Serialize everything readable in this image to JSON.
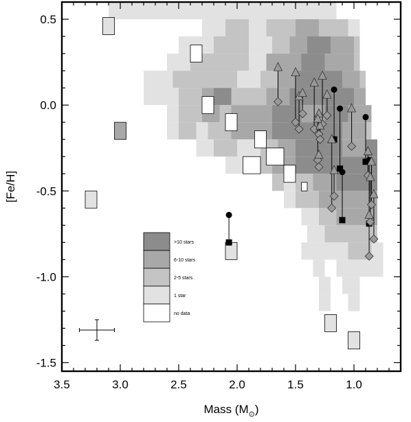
{
  "chart_data": {
    "type": "heatmap",
    "title": "",
    "xlabel": "Mass (M",
    "xlabel_subscript": "⊙",
    "xlabel_close": ")",
    "ylabel": "[Fe/H]",
    "xlim": [
      3.5,
      0.6
    ],
    "ylim": [
      -1.55,
      0.6
    ],
    "x_ticks": [
      3.5,
      3.0,
      2.5,
      2.0,
      1.5,
      1.0
    ],
    "x_tick_labels": [
      "3.5",
      "3.0",
      "2.5",
      "2.0",
      "1.5",
      "1.0"
    ],
    "y_ticks": [
      0.5,
      0.0,
      -0.5,
      -1.0,
      -1.5
    ],
    "y_tick_labels": [
      "0.5",
      "0.0",
      "-0.5",
      "-1.0",
      "-1.5"
    ],
    "cell_size": {
      "mass": 0.1,
      "feh": 0.1
    },
    "colors": {
      "level_4": "#8c8c8c",
      "level_3": "#a8a8a8",
      "level_2": "#c4c4c4",
      "level_1": "#e2e2e2",
      "level_0": "#ffffff"
    },
    "legend": {
      "placement": "lower-left",
      "entries": [
        {
          "label": ">10 stars",
          "level": 4
        },
        {
          "label": "6-10 stars",
          "level": 3
        },
        {
          "label": "2-5 stars",
          "level": 2
        },
        {
          "label": "1 star",
          "level": 1
        },
        {
          "label": "no data",
          "level": 0
        }
      ]
    },
    "density_rows": [
      {
        "feh": 0.55,
        "cells": [
          [
            3.1,
            1.15,
            1
          ]
        ]
      },
      {
        "feh": 0.45,
        "cells": [
          [
            2.3,
            2.1,
            1
          ],
          [
            2.1,
            1.9,
            2
          ],
          [
            1.9,
            1.75,
            1
          ],
          [
            1.75,
            1.5,
            2
          ],
          [
            1.5,
            1.3,
            3
          ],
          [
            1.3,
            1.05,
            2
          ],
          [
            1.05,
            0.95,
            1
          ]
        ]
      },
      {
        "feh": 0.35,
        "cells": [
          [
            2.5,
            2.2,
            1
          ],
          [
            2.2,
            1.9,
            2
          ],
          [
            1.9,
            1.7,
            1
          ],
          [
            1.7,
            1.55,
            2
          ],
          [
            1.55,
            1.4,
            3
          ],
          [
            1.4,
            1.2,
            4
          ],
          [
            1.2,
            1.0,
            3
          ],
          [
            1.0,
            0.95,
            2
          ]
        ]
      },
      {
        "feh": 0.25,
        "cells": [
          [
            2.6,
            2.4,
            1
          ],
          [
            2.4,
            2.1,
            2
          ],
          [
            2.1,
            1.9,
            2
          ],
          [
            1.9,
            1.75,
            1
          ],
          [
            1.75,
            1.6,
            3
          ],
          [
            1.6,
            1.45,
            3
          ],
          [
            1.45,
            1.25,
            4
          ],
          [
            1.25,
            1.1,
            3
          ],
          [
            1.1,
            1.0,
            3
          ],
          [
            1.0,
            0.95,
            2
          ]
        ]
      },
      {
        "feh": 0.15,
        "cells": [
          [
            2.8,
            2.55,
            1
          ],
          [
            2.55,
            2.2,
            2
          ],
          [
            2.2,
            2.0,
            2
          ],
          [
            2.0,
            1.8,
            1
          ],
          [
            1.8,
            1.65,
            2
          ],
          [
            1.65,
            1.5,
            3
          ],
          [
            1.5,
            1.1,
            4
          ],
          [
            1.1,
            0.95,
            3
          ],
          [
            0.95,
            0.9,
            2
          ]
        ]
      },
      {
        "feh": 0.05,
        "cells": [
          [
            2.8,
            2.5,
            1
          ],
          [
            2.5,
            2.3,
            2
          ],
          [
            2.3,
            2.2,
            3
          ],
          [
            2.2,
            2.05,
            4
          ],
          [
            2.05,
            1.9,
            2
          ],
          [
            1.9,
            1.75,
            2
          ],
          [
            1.75,
            1.55,
            3
          ],
          [
            1.55,
            1.0,
            4
          ],
          [
            1.0,
            0.9,
            3
          ]
        ]
      },
      {
        "feh": -0.05,
        "cells": [
          [
            2.6,
            2.5,
            1
          ],
          [
            2.5,
            2.3,
            2
          ],
          [
            2.3,
            2.15,
            3
          ],
          [
            2.15,
            2.05,
            2
          ],
          [
            2.05,
            1.9,
            3
          ],
          [
            1.9,
            1.7,
            3
          ],
          [
            1.7,
            1.45,
            4
          ],
          [
            1.45,
            1.25,
            3
          ],
          [
            1.25,
            1.05,
            4
          ],
          [
            1.05,
            0.85,
            3
          ]
        ]
      },
      {
        "feh": -0.15,
        "cells": [
          [
            2.6,
            2.5,
            1
          ],
          [
            2.5,
            2.35,
            2
          ],
          [
            2.35,
            2.25,
            1
          ],
          [
            2.25,
            2.05,
            2
          ],
          [
            2.05,
            1.85,
            3
          ],
          [
            1.85,
            1.7,
            3
          ],
          [
            1.7,
            1.5,
            4
          ],
          [
            1.5,
            1.3,
            4
          ],
          [
            1.3,
            1.1,
            4
          ],
          [
            1.1,
            0.9,
            3
          ],
          [
            0.9,
            0.85,
            2
          ]
        ]
      },
      {
        "feh": -0.25,
        "cells": [
          [
            2.35,
            2.2,
            1
          ],
          [
            2.2,
            2.0,
            2
          ],
          [
            2.0,
            1.8,
            1
          ],
          [
            1.8,
            1.65,
            2
          ],
          [
            1.65,
            1.5,
            3
          ],
          [
            1.5,
            1.1,
            4
          ],
          [
            1.1,
            0.9,
            3
          ],
          [
            0.9,
            0.8,
            4
          ]
        ]
      },
      {
        "feh": -0.35,
        "cells": [
          [
            2.1,
            1.95,
            1
          ],
          [
            1.95,
            1.7,
            2
          ],
          [
            1.7,
            1.5,
            3
          ],
          [
            1.5,
            1.3,
            4
          ],
          [
            1.3,
            1.1,
            4
          ],
          [
            1.1,
            0.9,
            4
          ],
          [
            0.9,
            0.8,
            4
          ]
        ]
      },
      {
        "feh": -0.45,
        "cells": [
          [
            1.7,
            1.6,
            2
          ],
          [
            1.6,
            1.5,
            1
          ],
          [
            1.5,
            1.35,
            2
          ],
          [
            1.35,
            1.15,
            3
          ],
          [
            1.15,
            0.95,
            4
          ],
          [
            0.95,
            0.8,
            4
          ]
        ]
      },
      {
        "feh": -0.55,
        "cells": [
          [
            1.6,
            1.5,
            1
          ],
          [
            1.5,
            1.3,
            2
          ],
          [
            1.3,
            1.1,
            3
          ],
          [
            1.1,
            0.95,
            3
          ],
          [
            0.95,
            0.8,
            3
          ]
        ]
      },
      {
        "feh": -0.65,
        "cells": [
          [
            1.45,
            1.3,
            1
          ],
          [
            1.3,
            1.15,
            2
          ],
          [
            1.15,
            1.0,
            3
          ],
          [
            1.0,
            0.8,
            3
          ]
        ]
      },
      {
        "feh": -0.75,
        "cells": [
          [
            1.4,
            1.25,
            1
          ],
          [
            1.25,
            1.1,
            2
          ],
          [
            1.1,
            0.95,
            2
          ],
          [
            0.95,
            0.8,
            2
          ]
        ]
      },
      {
        "feh": -0.85,
        "cells": [
          [
            1.45,
            1.3,
            1
          ],
          [
            1.3,
            1.15,
            1
          ],
          [
            1.15,
            1.05,
            1
          ],
          [
            1.05,
            0.95,
            2
          ],
          [
            0.95,
            0.85,
            2
          ],
          [
            0.85,
            0.75,
            1
          ]
        ]
      },
      {
        "feh": -0.95,
        "cells": [
          [
            1.35,
            1.25,
            1
          ],
          [
            1.15,
            1.05,
            1
          ],
          [
            1.05,
            0.75,
            1
          ]
        ]
      },
      {
        "feh": -1.05,
        "cells": [
          [
            1.3,
            1.2,
            1
          ],
          [
            1.1,
            0.95,
            1
          ]
        ]
      },
      {
        "feh": -1.15,
        "cells": [
          [
            1.3,
            1.2,
            1
          ],
          [
            1.05,
            0.95,
            1
          ]
        ]
      }
    ],
    "white_patches": [
      [
        2.4,
        2.3,
        0.35,
        0.25
      ],
      [
        2.3,
        2.2,
        0.05,
        -0.05
      ],
      [
        2.1,
        2.0,
        -0.05,
        -0.15
      ],
      [
        1.85,
        1.75,
        -0.15,
        -0.25
      ],
      [
        1.75,
        1.6,
        -0.25,
        -0.35
      ],
      [
        1.6,
        1.5,
        -0.35,
        -0.45
      ],
      [
        1.95,
        1.8,
        -0.3,
        -0.4
      ],
      [
        1.45,
        1.4,
        -0.45,
        -0.5
      ]
    ],
    "isolated_cells": [
      {
        "mass": [
          3.15,
          3.05
        ],
        "feh": [
          0.51,
          0.41
        ],
        "level": 1
      },
      {
        "mass": [
          3.05,
          2.95
        ],
        "feh": [
          -0.1,
          -0.2
        ],
        "level": 3
      },
      {
        "mass": [
          3.3,
          3.2
        ],
        "feh": [
          -0.5,
          -0.6
        ],
        "level": 1
      },
      {
        "mass": [
          2.1,
          2.0
        ],
        "feh": [
          -0.8,
          -0.9
        ],
        "level": 1
      },
      {
        "mass": [
          1.25,
          1.15
        ],
        "feh": [
          -1.22,
          -1.32
        ],
        "level": 1
      },
      {
        "mass": [
          1.05,
          0.95
        ],
        "feh": [
          -1.32,
          -1.42
        ],
        "level": 1
      }
    ],
    "vectors": [
      {
        "mass": 2.07,
        "start_feh": -0.8,
        "end_feh": -0.64,
        "start_marker": "square",
        "end_marker": "circle"
      },
      {
        "mass": 1.17,
        "start_feh": -0.2,
        "end_feh": 0.09,
        "start_marker": "square",
        "end_marker": "circle"
      },
      {
        "mass": 1.12,
        "start_feh": -0.37,
        "end_feh": -0.02,
        "start_marker": "square",
        "end_marker": "circle"
      },
      {
        "mass": 1.1,
        "start_feh": -0.67,
        "end_feh": -0.39,
        "start_marker": "square",
        "end_marker": "circle"
      },
      {
        "mass": 0.9,
        "start_feh": -0.33,
        "end_feh": -0.07,
        "start_marker": "square",
        "end_marker": "circle"
      },
      {
        "mass": 0.87,
        "start_feh": -0.69,
        "end_feh": -0.32,
        "start_marker": "square",
        "end_marker": "circle"
      },
      {
        "mass": 1.65,
        "start_feh": 0.02,
        "end_feh": 0.22,
        "start_marker": "diamond",
        "end_marker": "triangle"
      },
      {
        "mass": 1.5,
        "start_feh": -0.1,
        "end_feh": 0.19,
        "start_marker": "diamond",
        "end_marker": "triangle"
      },
      {
        "mass": 1.47,
        "start_feh": -0.14,
        "end_feh": 0.05,
        "start_marker": "diamond",
        "end_marker": "triangle"
      },
      {
        "mass": 1.44,
        "start_feh": -0.05,
        "end_feh": 0.07,
        "start_marker": "diamond",
        "end_marker": "triangle"
      },
      {
        "mass": 1.34,
        "start_feh": -0.14,
        "end_feh": 0.13,
        "start_marker": "diamond",
        "end_marker": "triangle"
      },
      {
        "mass": 1.27,
        "start_feh": -0.11,
        "end_feh": 0.17,
        "start_marker": "diamond",
        "end_marker": "triangle"
      },
      {
        "mass": 1.23,
        "start_feh": -0.06,
        "end_feh": 0.06,
        "start_marker": "diamond",
        "end_marker": "triangle"
      },
      {
        "mass": 1.3,
        "start_feh": -0.17,
        "end_feh": -0.05,
        "start_marker": "diamond",
        "end_marker": "triangle"
      },
      {
        "mass": 1.29,
        "start_feh": -0.2,
        "end_feh": -0.12,
        "start_marker": "diamond",
        "end_marker": "triangle"
      },
      {
        "mass": 1.31,
        "start_feh": -0.32,
        "end_feh": -0.08,
        "start_marker": "diamond",
        "end_marker": "triangle"
      },
      {
        "mass": 1.3,
        "start_feh": -0.36,
        "end_feh": -0.29,
        "start_marker": "diamond",
        "end_marker": "triangle"
      },
      {
        "mass": 1.19,
        "start_feh": -0.6,
        "end_feh": -0.2,
        "start_marker": "diamond",
        "end_marker": "triangle"
      },
      {
        "mass": 1.17,
        "start_feh": -0.53,
        "end_feh": -0.38,
        "start_marker": "diamond",
        "end_marker": "triangle"
      },
      {
        "mass": 1.02,
        "start_feh": -0.24,
        "end_feh": -0.02,
        "start_marker": "diamond",
        "end_marker": "triangle"
      },
      {
        "mass": 0.88,
        "start_feh": -0.41,
        "end_feh": -0.27,
        "start_marker": "diamond",
        "end_marker": "triangle"
      },
      {
        "mass": 0.85,
        "start_feh": -0.58,
        "end_feh": -0.33,
        "start_marker": "diamond",
        "end_marker": "triangle"
      },
      {
        "mass": 0.86,
        "start_feh": -0.68,
        "end_feh": -0.42,
        "start_marker": "diamond",
        "end_marker": "triangle"
      },
      {
        "mass": 0.83,
        "start_feh": -0.78,
        "end_feh": -0.52,
        "start_marker": "diamond",
        "end_marker": "triangle"
      },
      {
        "mass": 0.87,
        "start_feh": -0.88,
        "end_feh": -0.64,
        "start_marker": "diamond",
        "end_marker": "triangle"
      }
    ],
    "error_bar": {
      "mass": 3.2,
      "feh": -1.31,
      "mass_err": 0.15,
      "feh_err": 0.06
    },
    "grid": false
  }
}
